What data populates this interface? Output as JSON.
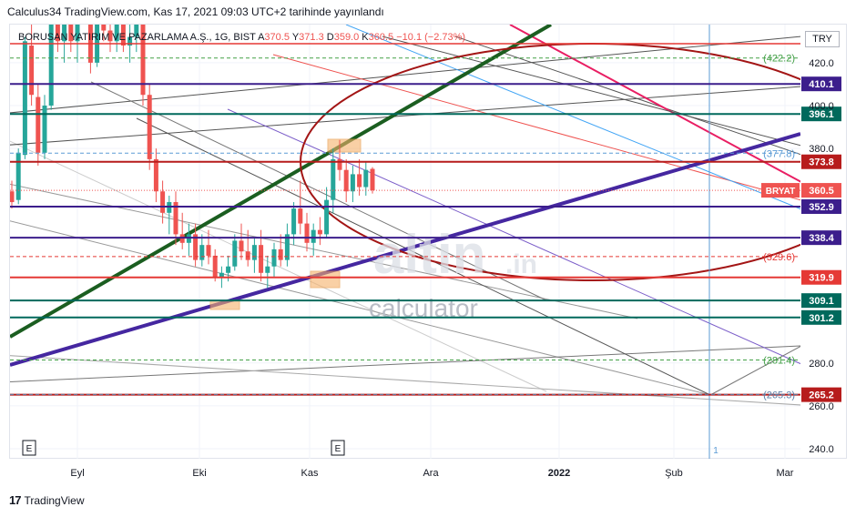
{
  "header": {
    "text": "Calculus34 TradingView.com, Kas 17, 2021 09:03 UTC+2 tarihinde yayınlandı"
  },
  "legend": {
    "symbol": "BORUSAN YATIRIM VE PAZARLAMA A.Ş., 1G, BIST",
    "o_label": "A",
    "o": "370.5",
    "h_label": "Y",
    "h": "371.3",
    "l_label": "D",
    "l": "359.0",
    "c_label": "K",
    "c": "360.5",
    "change": "−10.1 (−2.73%)"
  },
  "currency": "TRY",
  "footer": {
    "logo": "17",
    "brand": "TradingView"
  },
  "watermark": {
    "brand": "altin",
    "suffix": ".in",
    "sub": "calculator"
  },
  "colors": {
    "up": "#26a69a",
    "down": "#ef5350",
    "purple": "#3c1e8c",
    "teal": "#00695c",
    "darkred": "#b71c1c",
    "green": "#1b5e20"
  },
  "chart_data": {
    "type": "candlestick",
    "ylim": [
      230,
      450
    ],
    "y_ticks": [
      240.0,
      260.0,
      280.0,
      380.0,
      400.0,
      420.0
    ],
    "x_ticks": [
      "Eyl",
      "Eki",
      "Kas",
      "Ara",
      "2022",
      "Şub",
      "Mar"
    ],
    "horizontal_levels": [
      {
        "price": 410.1,
        "label": "410.1",
        "color": "#3c1e8c"
      },
      {
        "price": 396.1,
        "label": "396.1",
        "color": "#00695c"
      },
      {
        "price": 373.8,
        "label": "373.8",
        "color": "#b71c1c"
      },
      {
        "price": 352.9,
        "label": "352.9",
        "color": "#3c1e8c"
      },
      {
        "price": 338.4,
        "label": "338.4",
        "color": "#3c1e8c"
      },
      {
        "price": 319.9,
        "label": "319.9",
        "color": "#e53935"
      },
      {
        "price": 309.1,
        "label": "309.1",
        "color": "#00695c"
      },
      {
        "price": 301.2,
        "label": "301.2",
        "color": "#00695c"
      },
      {
        "price": 265.2,
        "label": "265.2",
        "color": "#b71c1c"
      }
    ],
    "dashed_levels": [
      {
        "price": 422.2,
        "label": "(422.2)",
        "color": "#43a047"
      },
      {
        "price": 377.8,
        "label": "(377.8)",
        "color": "#5b9bd5"
      },
      {
        "price": 329.6,
        "label": "(329.6)",
        "color": "#e53935"
      },
      {
        "price": 281.4,
        "label": "(281.4)",
        "color": "#43a047"
      },
      {
        "price": 265.3,
        "label": "(265.3)",
        "color": "#5b7fa8"
      }
    ],
    "last_price": {
      "price": 360.5,
      "label": "360.5",
      "symbol": "BRYAT"
    },
    "events": [
      "E",
      "E"
    ],
    "vertical_marker": "1",
    "candles": [
      {
        "o": 360,
        "h": 365,
        "l": 352,
        "c": 355
      },
      {
        "o": 356,
        "h": 380,
        "l": 354,
        "c": 378
      },
      {
        "o": 377,
        "h": 432,
        "l": 375,
        "c": 430
      },
      {
        "o": 428,
        "h": 440,
        "l": 400,
        "c": 405
      },
      {
        "o": 404,
        "h": 410,
        "l": 372,
        "c": 378
      },
      {
        "o": 378,
        "h": 405,
        "l": 375,
        "c": 400
      },
      {
        "o": 400,
        "h": 445,
        "l": 398,
        "c": 440
      },
      {
        "o": 440,
        "h": 455,
        "l": 425,
        "c": 430
      },
      {
        "o": 430,
        "h": 450,
        "l": 420,
        "c": 445
      },
      {
        "o": 445,
        "h": 455,
        "l": 425,
        "c": 430
      },
      {
        "o": 430,
        "h": 460,
        "l": 420,
        "c": 455
      },
      {
        "o": 455,
        "h": 470,
        "l": 440,
        "c": 445
      },
      {
        "o": 445,
        "h": 460,
        "l": 415,
        "c": 420
      },
      {
        "o": 420,
        "h": 450,
        "l": 418,
        "c": 445
      },
      {
        "o": 445,
        "h": 460,
        "l": 430,
        "c": 435
      },
      {
        "o": 435,
        "h": 450,
        "l": 425,
        "c": 430
      },
      {
        "o": 430,
        "h": 450,
        "l": 425,
        "c": 445
      },
      {
        "o": 445,
        "h": 460,
        "l": 425,
        "c": 428
      },
      {
        "o": 428,
        "h": 440,
        "l": 420,
        "c": 432
      },
      {
        "o": 432,
        "h": 448,
        "l": 425,
        "c": 442
      },
      {
        "o": 442,
        "h": 455,
        "l": 400,
        "c": 405
      },
      {
        "o": 405,
        "h": 410,
        "l": 370,
        "c": 375
      },
      {
        "o": 375,
        "h": 380,
        "l": 355,
        "c": 360
      },
      {
        "o": 360,
        "h": 365,
        "l": 345,
        "c": 350
      },
      {
        "o": 350,
        "h": 358,
        "l": 340,
        "c": 355
      },
      {
        "o": 355,
        "h": 360,
        "l": 335,
        "c": 340
      },
      {
        "o": 340,
        "h": 350,
        "l": 333,
        "c": 336
      },
      {
        "o": 336,
        "h": 345,
        "l": 330,
        "c": 340
      },
      {
        "o": 340,
        "h": 345,
        "l": 325,
        "c": 328
      },
      {
        "o": 328,
        "h": 340,
        "l": 325,
        "c": 335
      },
      {
        "o": 335,
        "h": 342,
        "l": 326,
        "c": 330
      },
      {
        "o": 330,
        "h": 333,
        "l": 318,
        "c": 320
      },
      {
        "o": 320,
        "h": 325,
        "l": 315,
        "c": 322
      },
      {
        "o": 322,
        "h": 330,
        "l": 318,
        "c": 325
      },
      {
        "o": 325,
        "h": 340,
        "l": 323,
        "c": 337
      },
      {
        "o": 337,
        "h": 345,
        "l": 328,
        "c": 332
      },
      {
        "o": 332,
        "h": 342,
        "l": 325,
        "c": 328
      },
      {
        "o": 328,
        "h": 338,
        "l": 322,
        "c": 335
      },
      {
        "o": 335,
        "h": 342,
        "l": 318,
        "c": 322
      },
      {
        "o": 322,
        "h": 330,
        "l": 315,
        "c": 325
      },
      {
        "o": 325,
        "h": 336,
        "l": 320,
        "c": 333
      },
      {
        "o": 333,
        "h": 340,
        "l": 325,
        "c": 328
      },
      {
        "o": 328,
        "h": 345,
        "l": 325,
        "c": 340
      },
      {
        "o": 340,
        "h": 355,
        "l": 335,
        "c": 352
      },
      {
        "o": 352,
        "h": 365,
        "l": 340,
        "c": 345
      },
      {
        "o": 345,
        "h": 350,
        "l": 332,
        "c": 336
      },
      {
        "o": 336,
        "h": 345,
        "l": 330,
        "c": 342
      },
      {
        "o": 342,
        "h": 348,
        "l": 335,
        "c": 340
      },
      {
        "o": 340,
        "h": 362,
        "l": 338,
        "c": 356
      },
      {
        "o": 356,
        "h": 380,
        "l": 350,
        "c": 375
      },
      {
        "o": 375,
        "h": 384,
        "l": 365,
        "c": 370
      },
      {
        "o": 370,
        "h": 375,
        "l": 355,
        "c": 360
      },
      {
        "o": 360,
        "h": 372,
        "l": 355,
        "c": 368
      },
      {
        "o": 368,
        "h": 375,
        "l": 358,
        "c": 362
      },
      {
        "o": 362,
        "h": 374,
        "l": 358,
        "c": 370
      },
      {
        "o": 370.5,
        "h": 371.3,
        "l": 359.0,
        "c": 360.5
      }
    ]
  }
}
